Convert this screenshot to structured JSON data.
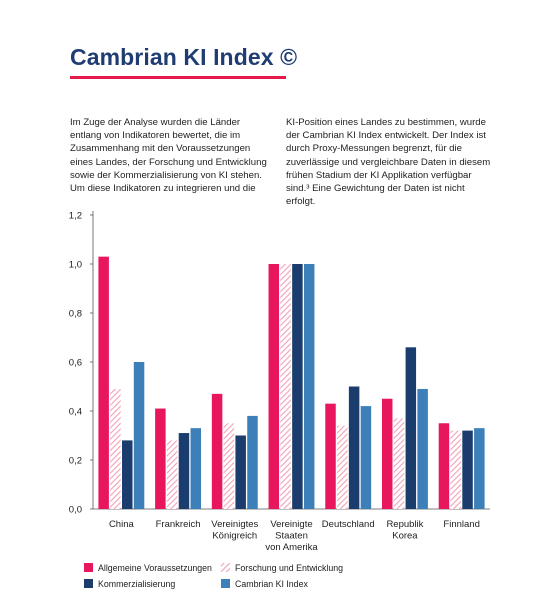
{
  "header": {
    "title": "Cambrian KI Index ©"
  },
  "intro": {
    "left_text": "Im Zuge der Analyse wurden die Länder entlang von Indikatoren bewertet, die im Zusammenhang mit den Voraussetzungen eines Landes, der Forschung und Entwicklung sowie der Kommerzialisierung von KI stehen. Um diese Indikatoren zu integrieren und die",
    "right_text": "KI-Position eines Landes zu bestimmen, wurde der Cambrian KI Index entwickelt. Der Index ist durch Proxy-Messungen begrenzt, für die zuverlässige und vergleichbare Daten in diesem frühen Stadium der KI Applikation verfügbar sind.³ Eine Gewichtung der Daten ist nicht erfolgt."
  },
  "chart_data": {
    "type": "bar",
    "categories": [
      [
        "China"
      ],
      [
        "Frankreich"
      ],
      [
        "Vereinigtes",
        "Königreich"
      ],
      [
        "Vereinigte",
        "Staaten",
        "von Amerika"
      ],
      [
        "Deutschland"
      ],
      [
        "Republik",
        "Korea"
      ],
      [
        "Finnland"
      ]
    ],
    "series": [
      {
        "name": "Allgemeine Voraussetzungen",
        "color": "#e8175d",
        "pattern": "solid",
        "values": [
          1.03,
          0.41,
          0.47,
          1.0,
          0.43,
          0.45,
          0.35
        ]
      },
      {
        "name": "Forschung und Entwicklung",
        "color": "#f2a0b5",
        "pattern": "hatched",
        "values": [
          0.49,
          0.28,
          0.35,
          1.0,
          0.34,
          0.37,
          0.32
        ]
      },
      {
        "name": "Kommerzialisierung",
        "color": "#1b3d6e",
        "pattern": "solid",
        "values": [
          0.28,
          0.31,
          0.3,
          1.0,
          0.5,
          0.66,
          0.32
        ]
      },
      {
        "name": "Cambrian KI Index",
        "color": "#3d7fb8",
        "pattern": "solid",
        "values": [
          0.6,
          0.33,
          0.38,
          1.0,
          0.42,
          0.49,
          0.33
        ]
      }
    ],
    "yticks": [
      "0,0",
      "0,2",
      "0,4",
      "0,6",
      "0,8",
      "1,0",
      "1,2"
    ],
    "ylim": [
      0,
      1.2
    ],
    "grid": false,
    "legend_position": "bottom"
  }
}
